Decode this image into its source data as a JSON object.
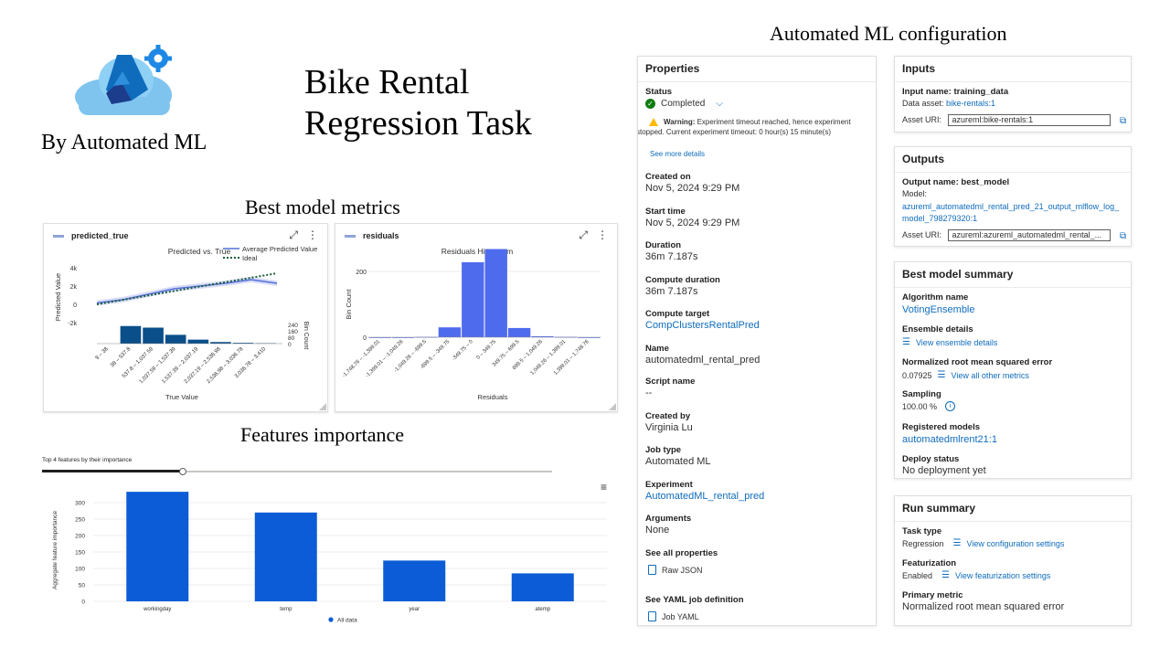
{
  "slide": {
    "title_line1": "Bike Rental",
    "title_line2": "Regression Task",
    "byline": "By Automated ML",
    "config_heading": "Automated ML configuration",
    "metrics_heading": "Best model metrics",
    "features_heading": "Features importance"
  },
  "colors": {
    "primary": "#0f6cbd",
    "bar_blue": "#0b5cd6",
    "residual_blue": "#4f6bed",
    "hist_dark": "#0b4f8a",
    "success": "#107c10",
    "warning": "#ffb900"
  },
  "pred_card": {
    "series_label": "predicted_true",
    "chart_title": "Predicted vs. True",
    "legend_avg": "Average Predicted Value",
    "legend_ideal": "Ideal",
    "ylabel": "Predicted Value",
    "xlabel": "True Value",
    "yticks": [
      "4k",
      "2k",
      "0",
      "-2k"
    ],
    "bin_label": "Bin Count",
    "bin_ticks": [
      "240",
      "160",
      "80",
      "0"
    ],
    "xticks": [
      "9 – 38",
      "38 – 537.8",
      "537.8 – 1,037.59",
      "1,037.59 – 1,537.39",
      "1,537.39 – 2,037.19",
      "2,037.19 – 2,536.98",
      "2,536.98 – 3,036.78",
      "3,036.78 – 3,410"
    ]
  },
  "resid_card": {
    "series_label": "residuals",
    "chart_title": "Residuals Histogram",
    "ylabel": "Bin Count",
    "xlabel": "Residuals",
    "yticks": [
      "200",
      "0"
    ],
    "xticks": [
      "-1,748.76 – -1,399.01",
      "-1,399.01 – -1,049.26",
      "-1,049.26 – -699.5",
      "-699.5 – -349.75",
      "-349.75 – 0",
      "0 – 349.75",
      "349.75 – 699.5",
      "699.5 – 1,049.26",
      "1,049.26 – 1,399.01",
      "1,399.01 – 1,748.76"
    ]
  },
  "features": {
    "slider_label": "Top 4 features by their importance",
    "menu_icon": "hamburger-menu-icon",
    "ylabel": "Aggregate feature importance",
    "legend": "All data"
  },
  "chart_data": [
    {
      "type": "line",
      "title": "Predicted vs. True",
      "xlabel": "True Value",
      "ylabel": "Predicted Value",
      "ylim": [
        -2000,
        4000
      ],
      "series": [
        {
          "name": "Average Predicted Value",
          "x": [
            0,
            1,
            2,
            3,
            4,
            5,
            6,
            7
          ],
          "values": [
            150,
            500,
            1100,
            1700,
            2000,
            2300,
            2700,
            2300
          ]
        },
        {
          "name": "Ideal",
          "x": [
            0,
            7
          ],
          "values": [
            0,
            3400
          ]
        }
      ],
      "bin_counts": [
        0,
        220,
        200,
        110,
        50,
        20,
        10,
        5
      ]
    },
    {
      "type": "bar",
      "title": "Residuals Histogram",
      "xlabel": "Residuals",
      "ylabel": "Bin Count",
      "ylim": [
        0,
        300
      ],
      "categories": [
        "-1,748.76 – -1,399.01",
        "-1,399.01 – -1,049.26",
        "-1,049.26 – -699.5",
        "-699.5 – -349.75",
        "-349.75 – 0",
        "0 – 349.75",
        "349.75 – 699.5",
        "699.5 – 1,049.26",
        "1,049.26 – 1,399.01",
        "1,399.01 – 1,748.76"
      ],
      "values": [
        0,
        0,
        1,
        30,
        228,
        268,
        28,
        3,
        1,
        0
      ]
    },
    {
      "type": "bar",
      "xlabel": "",
      "ylabel": "Aggregate feature importance",
      "ylim": [
        0,
        350
      ],
      "yticks": [
        0,
        50,
        100,
        150,
        200,
        250,
        300
      ],
      "categories": [
        "workingday",
        "temp",
        "year",
        "atemp"
      ],
      "series": [
        {
          "name": "All data",
          "values": [
            333,
            270,
            124,
            85
          ]
        }
      ]
    }
  ],
  "properties": {
    "title": "Properties",
    "status_label": "Status",
    "status_value": "Completed",
    "warning_bold": "Warning:",
    "warning_text1": " Experiment timeout reached, hence experiment",
    "warning_text2": "stopped. Current experiment timeout: 0 hour(s) 15 minute(s)",
    "see_more": "See more details",
    "created_on_label": "Created on",
    "created_on": "Nov 5, 2024 9:29 PM",
    "start_label": "Start time",
    "start": "Nov 5, 2024 9:29 PM",
    "duration_label": "Duration",
    "duration": "36m 7.187s",
    "compute_duration_label": "Compute duration",
    "compute_duration": "36m 7.187s",
    "compute_target_label": "Compute target",
    "compute_target": "CompClustersRentalPred",
    "name_label": "Name",
    "name": "automatedml_rental_pred",
    "script_label": "Script name",
    "script": "--",
    "created_by_label": "Created by",
    "created_by": "Virginia Lu",
    "job_type_label": "Job type",
    "job_type": "Automated ML",
    "experiment_label": "Experiment",
    "experiment": "AutomatedML_rental_pred",
    "arguments_label": "Arguments",
    "arguments": "None",
    "all_props_label": "See all properties",
    "raw_json": "Raw JSON",
    "yaml_label": "See YAML job definition",
    "job_yaml": "Job YAML"
  },
  "inputs": {
    "title": "Inputs",
    "input_name": "Input name: training_data",
    "data_asset_label": "Data asset: ",
    "data_asset": "bike-rentals:1",
    "uri_label": "Asset URI:",
    "uri": "azureml:bike-rentals:1"
  },
  "outputs": {
    "title": "Outputs",
    "output_name": "Output name: best_model",
    "model_label": "Model:",
    "model_line1": "azureml_automatedml_rental_pred_21_output_mlflow_log_",
    "model_line2": "model_798279320:1",
    "uri_label": "Asset URI:",
    "uri": "azureml:azureml_automatedml_rental_..."
  },
  "best_model": {
    "title": "Best model summary",
    "algo_label": "Algorithm name",
    "algo": "VotingEnsemble",
    "ensemble_label": "Ensemble details",
    "ensemble_link": "View ensemble details",
    "nrmse_label": "Normalized root mean squared error",
    "nrmse": "0.07925",
    "metrics_link": "View all other metrics",
    "sampling_label": "Sampling",
    "sampling": "100.00 %",
    "registered_label": "Registered models",
    "registered": "automatedmlrent21:1",
    "deploy_label": "Deploy status",
    "deploy": "No deployment yet"
  },
  "run_summary": {
    "title": "Run summary",
    "task_label": "Task type",
    "task": "Regression",
    "task_link": "View configuration settings",
    "feat_label": "Featurization",
    "feat": "Enabled",
    "feat_link": "View featurization settings",
    "primary_label": "Primary metric",
    "primary": "Normalized root mean squared error"
  }
}
